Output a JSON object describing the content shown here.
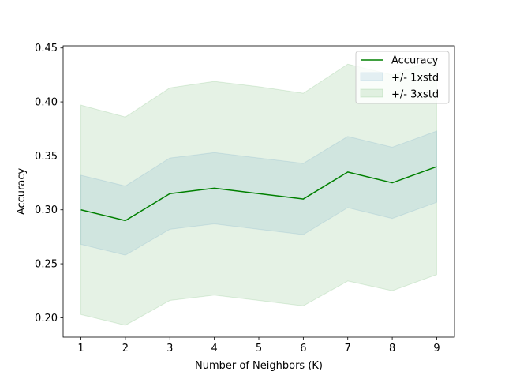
{
  "chart_data": {
    "type": "line",
    "title": "",
    "xlabel": "Number of Neighbors (K)",
    "ylabel": "Accuracy",
    "xlim": [
      0.6,
      9.4
    ],
    "ylim": [
      0.182,
      0.452
    ],
    "x": [
      1,
      2,
      3,
      4,
      5,
      6,
      7,
      8,
      9
    ],
    "xticks": [
      1,
      2,
      3,
      4,
      5,
      6,
      7,
      8,
      9
    ],
    "yticks": [
      0.2,
      0.25,
      0.3,
      0.35,
      0.4,
      0.45
    ],
    "ytick_labels": [
      "0.20",
      "0.25",
      "0.30",
      "0.35",
      "0.40",
      "0.45"
    ],
    "series": [
      {
        "name": "Accuracy",
        "color": "#008000",
        "values": [
          0.3,
          0.29,
          0.315,
          0.32,
          0.315,
          0.31,
          0.335,
          0.325,
          0.34
        ]
      }
    ],
    "bands": [
      {
        "name": "+/- 3xstd",
        "color": "#008000",
        "opacity": 0.1,
        "lower": [
          0.203,
          0.193,
          0.216,
          0.221,
          0.216,
          0.211,
          0.234,
          0.225,
          0.24
        ],
        "upper": [
          0.397,
          0.386,
          0.413,
          0.419,
          0.414,
          0.408,
          0.435,
          0.425,
          0.44
        ]
      },
      {
        "name": "+/- 1xstd",
        "color": "#1f77b4",
        "opacity": 0.1,
        "lower": [
          0.268,
          0.258,
          0.282,
          0.287,
          0.282,
          0.277,
          0.302,
          0.292,
          0.307
        ],
        "upper": [
          0.332,
          0.322,
          0.348,
          0.353,
          0.348,
          0.343,
          0.368,
          0.358,
          0.373
        ]
      }
    ],
    "legend": {
      "placement": "top-right",
      "entries": [
        {
          "label": "Accuracy",
          "kind": "line",
          "color": "#008000"
        },
        {
          "label": "+/- 1xstd",
          "kind": "patch",
          "color": "#1f77b4"
        },
        {
          "label": "+/- 3xstd",
          "kind": "patch",
          "color": "#008000"
        }
      ]
    }
  }
}
